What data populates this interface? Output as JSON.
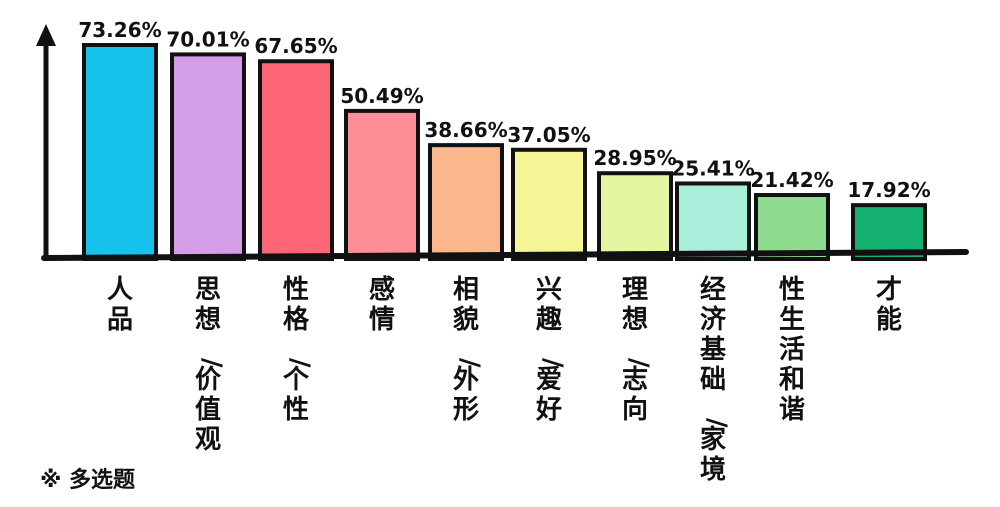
{
  "chart_data": {
    "type": "bar",
    "categories": [
      "人品",
      "思想/价值观",
      "性格/个性",
      "感情",
      "相貌/外形",
      "兴趣/爱好",
      "理想/志向",
      "经济基础/家境",
      "性生活和谐",
      "才能"
    ],
    "values": [
      73.26,
      70.01,
      67.65,
      50.49,
      38.66,
      37.05,
      28.95,
      25.41,
      21.42,
      17.92
    ],
    "data_labels": [
      "73.26%",
      "70.01%",
      "67.65%",
      "50.49%",
      "38.66%",
      "37.05%",
      "28.95%",
      "25.41%",
      "21.42%",
      "17.92%"
    ],
    "colors": [
      "#17c3ec",
      "#d49ee6",
      "#fd6677",
      "#fd8e98",
      "#fbb68c",
      "#f6f596",
      "#e4f6a2",
      "#a8eedb",
      "#8fdb8f",
      "#17b272"
    ],
    "ylim": [
      0,
      73.26
    ],
    "title": "",
    "xlabel": "",
    "ylabel": "",
    "grid": false,
    "legend": "none"
  },
  "footnote": "※ 多选题"
}
